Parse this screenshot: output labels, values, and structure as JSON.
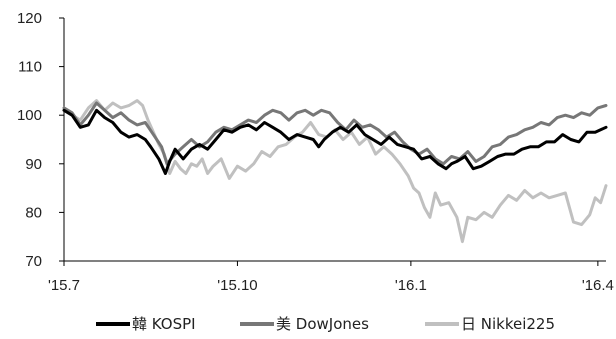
{
  "chart_data": {
    "type": "line",
    "title": "",
    "xlabel": "",
    "ylabel": "",
    "ylim": [
      70,
      120
    ],
    "yticks": [
      70,
      80,
      90,
      100,
      110,
      120
    ],
    "xticks": [
      {
        "label": "'15.7",
        "t": 0
      },
      {
        "label": "'15.10",
        "t": 0.32
      },
      {
        "label": "'16.1",
        "t": 0.64
      },
      {
        "label": "'16.4",
        "t": 0.985
      }
    ],
    "grid": false,
    "legend_position": "bottom",
    "series": [
      {
        "name": "韓 KOSPI",
        "color": "#000000",
        "width": 3,
        "points": [
          [
            0.0,
            101
          ],
          [
            0.015,
            100
          ],
          [
            0.03,
            97.5
          ],
          [
            0.045,
            98
          ],
          [
            0.06,
            101
          ],
          [
            0.075,
            99.5
          ],
          [
            0.09,
            98.5
          ],
          [
            0.105,
            96.5
          ],
          [
            0.12,
            95.5
          ],
          [
            0.135,
            96
          ],
          [
            0.15,
            95
          ],
          [
            0.16,
            93.5
          ],
          [
            0.175,
            91
          ],
          [
            0.187,
            88
          ],
          [
            0.195,
            90.5
          ],
          [
            0.205,
            93
          ],
          [
            0.22,
            91
          ],
          [
            0.235,
            93
          ],
          [
            0.25,
            94
          ],
          [
            0.265,
            93
          ],
          [
            0.28,
            95
          ],
          [
            0.295,
            97
          ],
          [
            0.31,
            96.5
          ],
          [
            0.325,
            97.5
          ],
          [
            0.34,
            98
          ],
          [
            0.355,
            97
          ],
          [
            0.37,
            98.5
          ],
          [
            0.385,
            97.5
          ],
          [
            0.4,
            96.5
          ],
          [
            0.415,
            95
          ],
          [
            0.43,
            96
          ],
          [
            0.445,
            95.5
          ],
          [
            0.46,
            95
          ],
          [
            0.47,
            93.5
          ],
          [
            0.48,
            95
          ],
          [
            0.495,
            96.5
          ],
          [
            0.51,
            97.5
          ],
          [
            0.525,
            96.5
          ],
          [
            0.54,
            98
          ],
          [
            0.555,
            96
          ],
          [
            0.57,
            95
          ],
          [
            0.585,
            94
          ],
          [
            0.6,
            95.5
          ],
          [
            0.615,
            94
          ],
          [
            0.63,
            93.5
          ],
          [
            0.645,
            93
          ],
          [
            0.66,
            91
          ],
          [
            0.675,
            91.5
          ],
          [
            0.69,
            90
          ],
          [
            0.705,
            89
          ],
          [
            0.715,
            90
          ],
          [
            0.725,
            90.5
          ],
          [
            0.74,
            91.5
          ],
          [
            0.755,
            89
          ],
          [
            0.77,
            89.5
          ],
          [
            0.785,
            90.5
          ],
          [
            0.8,
            91.5
          ],
          [
            0.815,
            92
          ],
          [
            0.83,
            92
          ],
          [
            0.845,
            93
          ],
          [
            0.86,
            93.5
          ],
          [
            0.875,
            93.5
          ],
          [
            0.89,
            94.5
          ],
          [
            0.905,
            94.5
          ],
          [
            0.92,
            96
          ],
          [
            0.935,
            95
          ],
          [
            0.95,
            94.5
          ],
          [
            0.965,
            96.5
          ],
          [
            0.98,
            96.5
          ],
          [
            0.99,
            97
          ],
          [
            1.0,
            97.5
          ]
        ]
      },
      {
        "name": "美 DowJones",
        "color": "#777777",
        "width": 3,
        "points": [
          [
            0.0,
            101.5
          ],
          [
            0.015,
            100.5
          ],
          [
            0.03,
            98
          ],
          [
            0.045,
            100
          ],
          [
            0.06,
            102.5
          ],
          [
            0.075,
            101
          ],
          [
            0.09,
            99.5
          ],
          [
            0.105,
            100.5
          ],
          [
            0.12,
            99
          ],
          [
            0.135,
            98
          ],
          [
            0.15,
            98.5
          ],
          [
            0.165,
            96
          ],
          [
            0.18,
            93.5
          ],
          [
            0.19,
            90
          ],
          [
            0.205,
            92
          ],
          [
            0.22,
            93.5
          ],
          [
            0.235,
            95
          ],
          [
            0.25,
            93.5
          ],
          [
            0.265,
            94.5
          ],
          [
            0.28,
            96.5
          ],
          [
            0.295,
            97.5
          ],
          [
            0.31,
            97
          ],
          [
            0.325,
            98
          ],
          [
            0.34,
            99
          ],
          [
            0.355,
            98.5
          ],
          [
            0.37,
            100
          ],
          [
            0.385,
            101
          ],
          [
            0.4,
            100.5
          ],
          [
            0.415,
            99
          ],
          [
            0.43,
            100.5
          ],
          [
            0.445,
            101
          ],
          [
            0.46,
            100
          ],
          [
            0.475,
            101
          ],
          [
            0.49,
            100.5
          ],
          [
            0.505,
            98.5
          ],
          [
            0.52,
            97
          ],
          [
            0.535,
            99
          ],
          [
            0.55,
            97.5
          ],
          [
            0.565,
            98
          ],
          [
            0.58,
            97
          ],
          [
            0.595,
            95.5
          ],
          [
            0.61,
            96.5
          ],
          [
            0.625,
            94.5
          ],
          [
            0.64,
            93
          ],
          [
            0.655,
            92
          ],
          [
            0.67,
            93
          ],
          [
            0.685,
            91
          ],
          [
            0.7,
            90
          ],
          [
            0.715,
            91.5
          ],
          [
            0.73,
            91
          ],
          [
            0.745,
            92.5
          ],
          [
            0.76,
            90.5
          ],
          [
            0.775,
            91.5
          ],
          [
            0.79,
            93.5
          ],
          [
            0.805,
            94
          ],
          [
            0.82,
            95.5
          ],
          [
            0.835,
            96
          ],
          [
            0.85,
            97
          ],
          [
            0.865,
            97.5
          ],
          [
            0.88,
            98.5
          ],
          [
            0.895,
            98
          ],
          [
            0.91,
            99.5
          ],
          [
            0.925,
            100
          ],
          [
            0.94,
            99.5
          ],
          [
            0.955,
            100.5
          ],
          [
            0.97,
            100
          ],
          [
            0.985,
            101.5
          ],
          [
            1.0,
            102
          ]
        ]
      },
      {
        "name": "日 Nikkei225",
        "color": "#c0c0c0",
        "width": 3,
        "points": [
          [
            0.0,
            101
          ],
          [
            0.015,
            100
          ],
          [
            0.03,
            99
          ],
          [
            0.045,
            101.5
          ],
          [
            0.06,
            103
          ],
          [
            0.075,
            101
          ],
          [
            0.09,
            102.5
          ],
          [
            0.105,
            101.5
          ],
          [
            0.12,
            102
          ],
          [
            0.135,
            103
          ],
          [
            0.145,
            102
          ],
          [
            0.155,
            99
          ],
          [
            0.165,
            96.5
          ],
          [
            0.175,
            94
          ],
          [
            0.185,
            92
          ],
          [
            0.195,
            88
          ],
          [
            0.205,
            90.5
          ],
          [
            0.215,
            89
          ],
          [
            0.225,
            88
          ],
          [
            0.235,
            90
          ],
          [
            0.245,
            89.5
          ],
          [
            0.255,
            91
          ],
          [
            0.265,
            88
          ],
          [
            0.275,
            89.5
          ],
          [
            0.29,
            91
          ],
          [
            0.305,
            87
          ],
          [
            0.32,
            89.5
          ],
          [
            0.335,
            88.5
          ],
          [
            0.35,
            90
          ],
          [
            0.365,
            92.5
          ],
          [
            0.38,
            91.5
          ],
          [
            0.395,
            93.5
          ],
          [
            0.41,
            94
          ],
          [
            0.425,
            95.5
          ],
          [
            0.44,
            96.5
          ],
          [
            0.455,
            98.5
          ],
          [
            0.47,
            96
          ],
          [
            0.485,
            95.5
          ],
          [
            0.5,
            97
          ],
          [
            0.515,
            95
          ],
          [
            0.53,
            96.5
          ],
          [
            0.545,
            94
          ],
          [
            0.56,
            95.5
          ],
          [
            0.575,
            92
          ],
          [
            0.59,
            93.5
          ],
          [
            0.605,
            92
          ],
          [
            0.62,
            90
          ],
          [
            0.635,
            87.5
          ],
          [
            0.645,
            85
          ],
          [
            0.655,
            84
          ],
          [
            0.665,
            81
          ],
          [
            0.675,
            79
          ],
          [
            0.685,
            84
          ],
          [
            0.695,
            81.5
          ],
          [
            0.71,
            82
          ],
          [
            0.725,
            79
          ],
          [
            0.735,
            74
          ],
          [
            0.745,
            79
          ],
          [
            0.76,
            78.5
          ],
          [
            0.775,
            80
          ],
          [
            0.79,
            79
          ],
          [
            0.805,
            81.5
          ],
          [
            0.82,
            83.5
          ],
          [
            0.835,
            82.5
          ],
          [
            0.85,
            84.5
          ],
          [
            0.865,
            83
          ],
          [
            0.88,
            84
          ],
          [
            0.895,
            83
          ],
          [
            0.91,
            83.5
          ],
          [
            0.925,
            84
          ],
          [
            0.94,
            78
          ],
          [
            0.955,
            77.5
          ],
          [
            0.97,
            79.5
          ],
          [
            0.98,
            83
          ],
          [
            0.99,
            82
          ],
          [
            1.0,
            85.5
          ]
        ]
      }
    ]
  }
}
